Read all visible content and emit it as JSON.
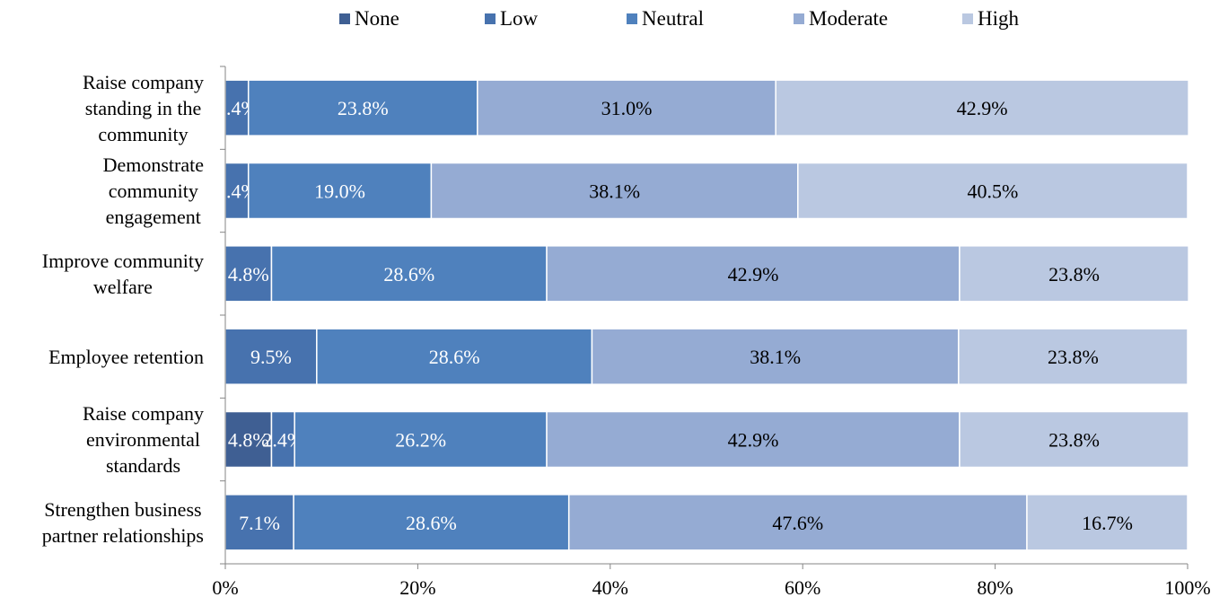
{
  "chart_data": {
    "type": "bar",
    "orientation": "horizontal",
    "stacked": "percent",
    "categories": [
      "Raise company standing in the community",
      "Demonstrate community engagement",
      "Improve community welfare",
      "Employee retention",
      "Raise company environmental standards",
      "Strengthen business partner relationships"
    ],
    "series": [
      {
        "name": "None",
        "color": "#3f5f93",
        "values": [
          0,
          0,
          0,
          0,
          4.8,
          0
        ]
      },
      {
        "name": "Low",
        "color": "#4772ae",
        "values": [
          2.4,
          2.4,
          4.8,
          9.5,
          2.4,
          7.1
        ]
      },
      {
        "name": "Neutral",
        "color": "#4f81bd",
        "values": [
          23.8,
          19.0,
          28.6,
          28.6,
          26.2,
          28.6
        ]
      },
      {
        "name": "Moderate",
        "color": "#95abd3",
        "values": [
          31.0,
          38.1,
          42.9,
          38.1,
          42.9,
          47.6
        ]
      },
      {
        "name": "High",
        "color": "#bac8e1",
        "values": [
          42.9,
          40.5,
          23.8,
          23.8,
          23.8,
          16.7
        ]
      }
    ],
    "xlim": [
      0,
      100
    ],
    "xticks": [
      "0%",
      "20%",
      "40%",
      "60%",
      "80%",
      "100%"
    ],
    "legend_position": "top",
    "grid": false
  }
}
